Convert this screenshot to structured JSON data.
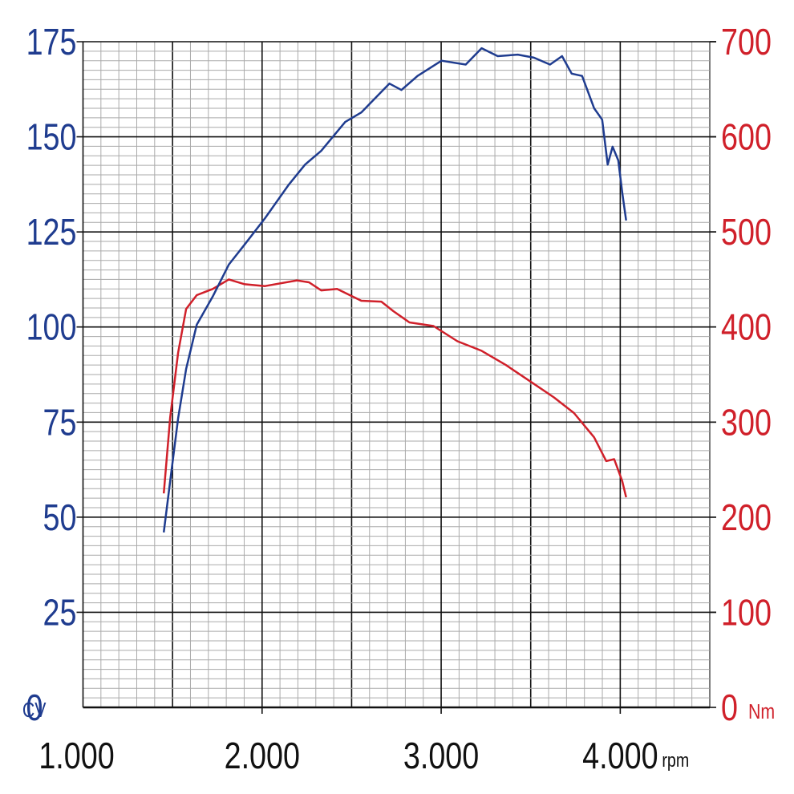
{
  "chart_data": {
    "type": "line",
    "x_unit": "rpm",
    "y_unit": "CV",
    "y2_unit": "Nm",
    "xlim": [
      1000,
      4500
    ],
    "xticks": [
      {
        "value": 1000,
        "label": "1.000"
      },
      {
        "value": 2000,
        "label": "2.000"
      },
      {
        "value": 3000,
        "label": "3.000"
      },
      {
        "value": 4000,
        "label": "4.000"
      }
    ],
    "ylim": [
      0,
      175
    ],
    "yticks": [
      0,
      25,
      50,
      75,
      100,
      125,
      150,
      175
    ],
    "y2lim": [
      0,
      700
    ],
    "y2ticks": [
      0,
      100,
      200,
      300,
      400,
      500,
      600,
      700
    ],
    "grid": true,
    "series": [
      {
        "name": "CV",
        "color": "#1f3c8f",
        "x": [
          1451,
          1487,
          1531,
          1576,
          1635,
          1724,
          1814,
          1903,
          2016,
          2150,
          2240,
          2330,
          2464,
          2554,
          2711,
          2778,
          2868,
          3002,
          3137,
          3226,
          3316,
          3428,
          3518,
          3608,
          3675,
          3729,
          3787,
          3854,
          3899,
          3930,
          3957,
          3989,
          4011,
          4033
        ],
        "values": [
          46,
          59.5,
          76,
          89,
          100.6,
          108,
          116.4,
          121.7,
          128.6,
          137.5,
          142.7,
          146.3,
          153.9,
          156.4,
          164,
          162.3,
          166,
          170,
          169,
          173.3,
          171.2,
          171.6,
          170.8,
          169,
          171.2,
          166.6,
          166,
          157.5,
          154.5,
          142.7,
          147.4,
          143.8,
          135.4,
          128
        ]
      },
      {
        "name": "Nm",
        "color": "#d0202a",
        "axis": "y2",
        "x": [
          1451,
          1487,
          1531,
          1576,
          1635,
          1724,
          1814,
          1903,
          2016,
          2195,
          2262,
          2330,
          2419,
          2554,
          2666,
          2733,
          2823,
          2957,
          3091,
          3226,
          3361,
          3496,
          3630,
          3742,
          3854,
          3922,
          3966,
          4011,
          4033
        ],
        "values": [
          225,
          305,
          373,
          419,
          433.5,
          440,
          450,
          445,
          443,
          449,
          447,
          438.5,
          440,
          427.6,
          426.7,
          416.6,
          404.8,
          401,
          385,
          375,
          360,
          343,
          326,
          309.5,
          284,
          259,
          261,
          238,
          221
        ]
      }
    ]
  }
}
